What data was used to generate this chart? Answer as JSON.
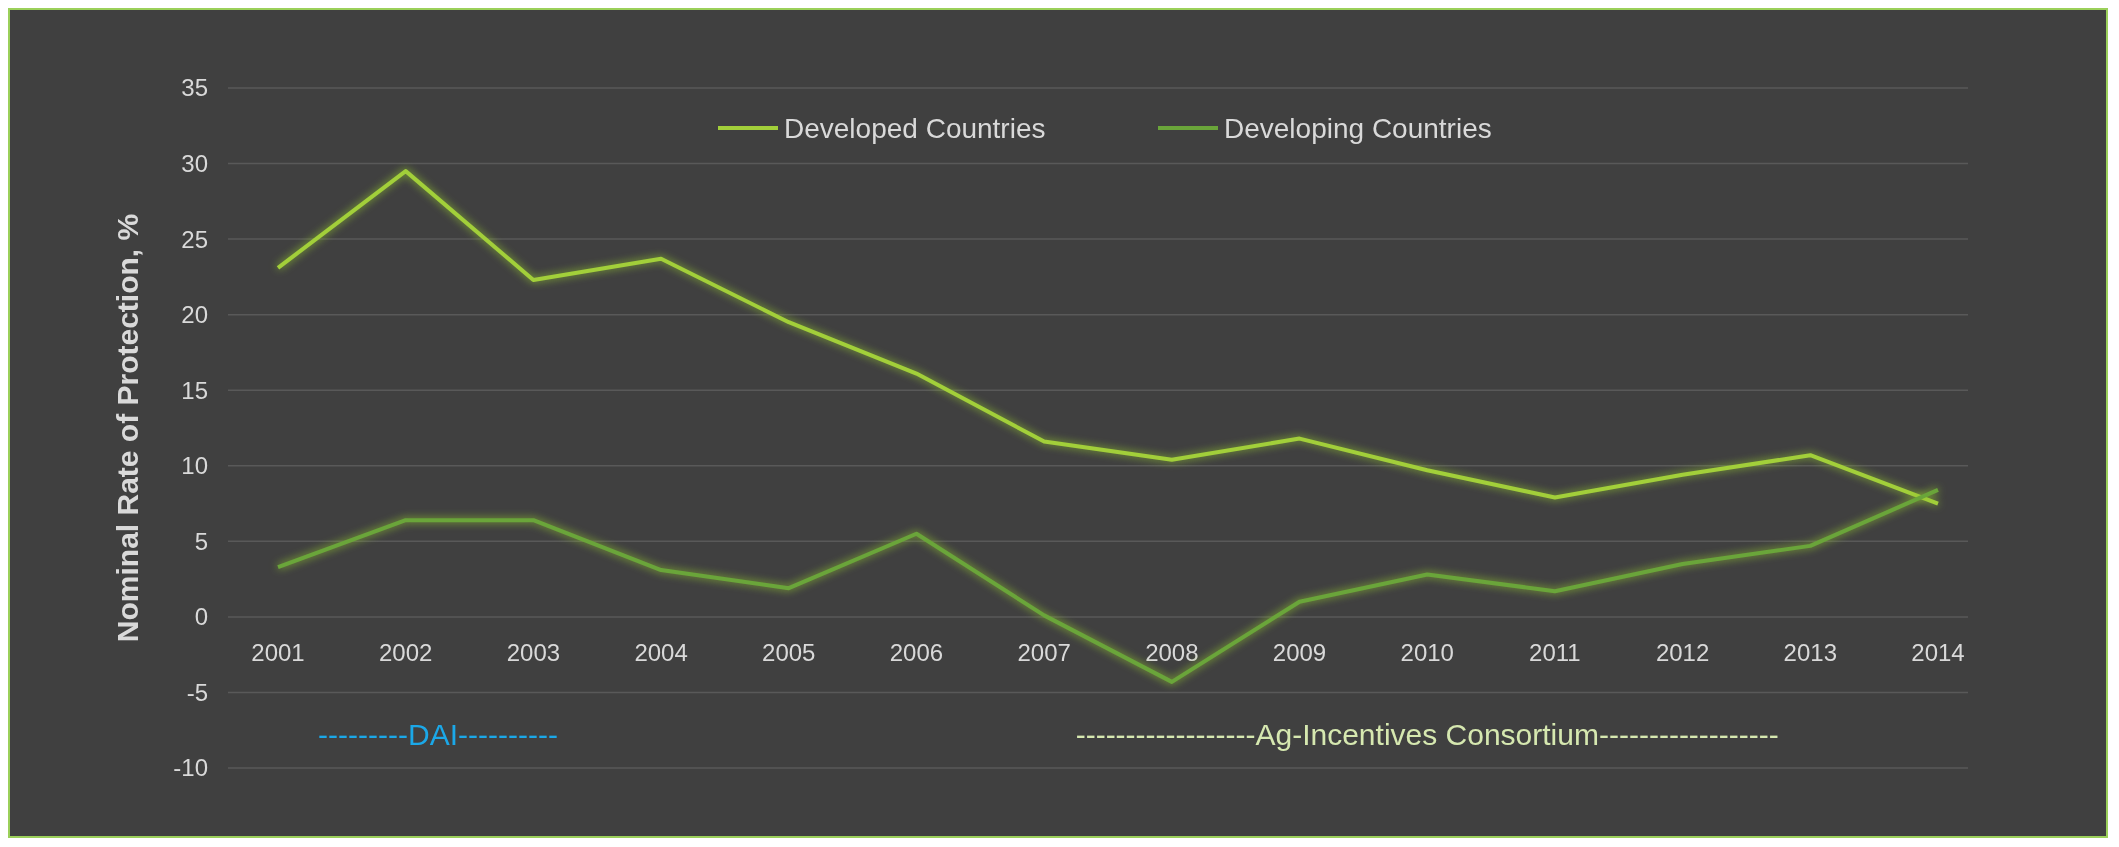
{
  "chart_data": {
    "type": "line",
    "ylabel": "Nominal Rate of Protection, %",
    "categories": [
      "2001",
      "2002",
      "2003",
      "2004",
      "2005",
      "2006",
      "2007",
      "2008",
      "2009",
      "2010",
      "2011",
      "2012",
      "2013",
      "2014"
    ],
    "series": [
      {
        "name": "Developed Countries",
        "color": "#a2cf3a",
        "values": [
          23.1,
          29.5,
          22.3,
          23.7,
          19.5,
          16.1,
          11.6,
          10.4,
          11.8,
          9.7,
          7.9,
          9.4,
          10.7,
          7.5
        ]
      },
      {
        "name": "Developing Countries",
        "color": "#6aa53a",
        "values": [
          3.3,
          6.4,
          6.4,
          3.1,
          1.9,
          5.5,
          0.1,
          -4.3,
          1.0,
          2.8,
          1.7,
          3.5,
          4.7,
          8.4
        ]
      }
    ],
    "ylim": [
      -10,
      35
    ],
    "yticks": [
      -10,
      -5,
      0,
      5,
      10,
      15,
      20,
      25,
      30,
      35
    ],
    "grid": "y",
    "legend": "top",
    "marker": "none",
    "line_style": "solid",
    "annotations": [
      "---------DAI----------",
      "------------------Ag-Incentives Consortium------------------"
    ]
  }
}
